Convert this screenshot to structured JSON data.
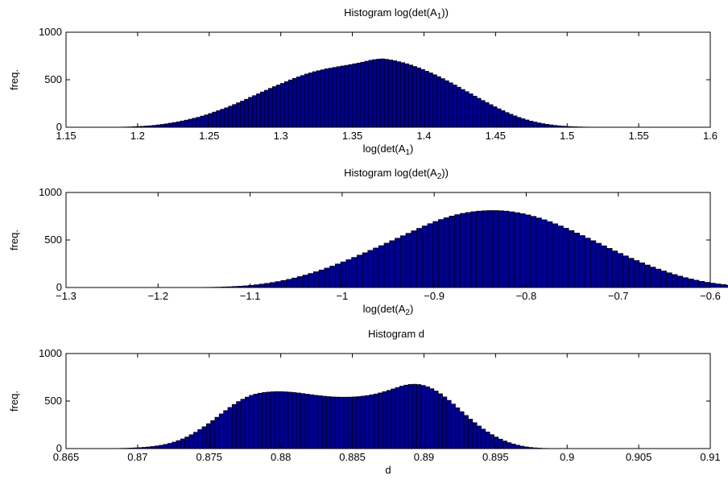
{
  "colors": {
    "bar_fill": "#00008f",
    "bar_edge": "#000000"
  },
  "chart_data": [
    {
      "type": "bar",
      "title": "Histogram log(det(A_1))",
      "xlabel": "log(det(A_1)",
      "ylabel": "freq.",
      "xlim": [
        1.15,
        1.6
      ],
      "ylim": [
        0,
        1000
      ],
      "xticks": [
        1.15,
        1.2,
        1.25,
        1.3,
        1.35,
        1.4,
        1.45,
        1.5,
        1.55,
        1.6
      ],
      "xtick_labels": [
        "1.15",
        "1.2",
        "1.25",
        "1.3",
        "1.35",
        "1.4",
        "1.45",
        "1.5",
        "1.55",
        "1.6"
      ],
      "yticks": [
        0,
        500,
        1000
      ],
      "ytick_labels": [
        "0",
        "500",
        "1000"
      ],
      "bin_start": 1.185,
      "bin_width": 0.0028,
      "values": [
        1,
        2,
        3,
        4,
        6,
        8,
        10,
        13,
        16,
        20,
        25,
        30,
        36,
        43,
        50,
        57,
        66,
        75,
        85,
        95,
        105,
        118,
        130,
        145,
        160,
        175,
        190,
        205,
        222,
        240,
        258,
        276,
        295,
        315,
        333,
        352,
        372,
        390,
        410,
        428,
        445,
        462,
        480,
        498,
        515,
        530,
        545,
        560,
        572,
        585,
        595,
        605,
        615,
        622,
        630,
        638,
        645,
        652,
        660,
        668,
        676,
        685,
        695,
        705,
        712,
        718,
        720,
        715,
        708,
        700,
        690,
        680,
        668,
        655,
        640,
        625,
        608,
        590,
        572,
        553,
        533,
        512,
        490,
        468,
        445,
        422,
        398,
        375,
        352,
        328,
        305,
        282,
        260,
        238,
        216,
        195,
        175,
        155,
        137,
        120,
        104,
        90,
        77,
        65,
        55,
        46,
        38,
        31,
        25,
        20,
        16,
        12,
        9,
        7,
        5,
        4,
        3,
        2,
        1
      ]
    },
    {
      "type": "bar",
      "title": "Histogram log(det(A_2))",
      "xlabel": "log(det(A_2)",
      "ylabel": "freq.",
      "xlim": [
        -1.3,
        -0.6
      ],
      "ylim": [
        0,
        1000
      ],
      "xticks": [
        -1.3,
        -1.2,
        -1.1,
        -1.0,
        -0.9,
        -0.8,
        -0.7,
        -0.6
      ],
      "xtick_labels": [
        "−1.3",
        "−1.2",
        "−1.1",
        "−1",
        "−0.9",
        "−0.8",
        "−0.7",
        "−0.6"
      ],
      "yticks": [
        0,
        500,
        1000
      ],
      "ytick_labels": [
        "0",
        "500",
        "1000"
      ],
      "bin_start": -1.155,
      "bin_width": 0.0059,
      "values": [
        1,
        2,
        3,
        4,
        6,
        8,
        11,
        14,
        18,
        23,
        29,
        36,
        44,
        53,
        63,
        74,
        86,
        100,
        115,
        131,
        148,
        166,
        185,
        205,
        226,
        248,
        270,
        293,
        317,
        341,
        366,
        391,
        416,
        441,
        467,
        493,
        519,
        545,
        571,
        597,
        623,
        648,
        672,
        695,
        716,
        735,
        752,
        767,
        780,
        790,
        798,
        804,
        808,
        810,
        810,
        808,
        804,
        797,
        788,
        777,
        764,
        749,
        732,
        713,
        693,
        671,
        648,
        624,
        599,
        573,
        547,
        520,
        493,
        466,
        439,
        412,
        385,
        359,
        333,
        308,
        284,
        260,
        237,
        215,
        194,
        174,
        155,
        137,
        120,
        104,
        90,
        77,
        65,
        55,
        46,
        38,
        31,
        25,
        20,
        16,
        12,
        9,
        7,
        5,
        4,
        3,
        2,
        1
      ]
    },
    {
      "type": "bar",
      "title": "Histogram d",
      "xlabel": "d",
      "ylabel": "freq.",
      "xlim": [
        0.865,
        0.91
      ],
      "ylim": [
        0,
        1000
      ],
      "xticks": [
        0.865,
        0.87,
        0.875,
        0.88,
        0.885,
        0.89,
        0.895,
        0.9,
        0.905,
        0.91
      ],
      "xtick_labels": [
        "0.865",
        "0.87",
        "0.875",
        "0.88",
        "0.885",
        "0.89",
        "0.895",
        "0.9",
        "0.905",
        "0.91"
      ],
      "yticks": [
        0,
        500,
        1000
      ],
      "ytick_labels": [
        "0",
        "500",
        "1000"
      ],
      "bin_start": 0.8685,
      "bin_width": 0.0003,
      "values": [
        2,
        3,
        4,
        6,
        8,
        10,
        13,
        17,
        22,
        28,
        35,
        44,
        55,
        68,
        84,
        102,
        122,
        146,
        172,
        200,
        230,
        262,
        295,
        330,
        365,
        400,
        433,
        465,
        495,
        520,
        542,
        560,
        573,
        583,
        590,
        595,
        598,
        600,
        599,
        597,
        594,
        590,
        585,
        579,
        573,
        567,
        561,
        556,
        551,
        547,
        544,
        542,
        541,
        541,
        542,
        544,
        547,
        552,
        558,
        566,
        575,
        586,
        599,
        613,
        628,
        643,
        657,
        668,
        675,
        677,
        674,
        665,
        651,
        631,
        606,
        577,
        544,
        508,
        469,
        429,
        389,
        349,
        310,
        273,
        238,
        205,
        175,
        147,
        122,
        100,
        80,
        63,
        48,
        36,
        26,
        18,
        12,
        8,
        5,
        3,
        2,
        1
      ]
    }
  ]
}
